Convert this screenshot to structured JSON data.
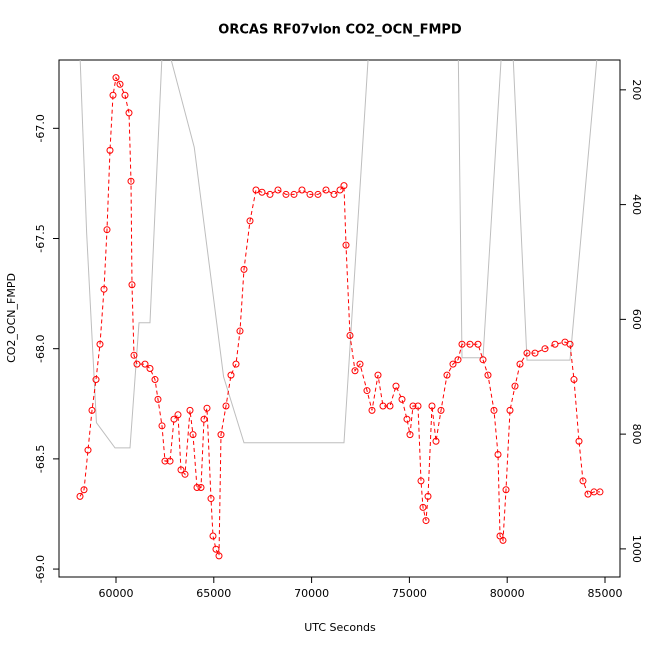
{
  "chart_data": {
    "type": "line",
    "title": "ORCAS RF07vlon CO2_OCN_FMPD",
    "xlabel": "UTC Seconds",
    "ylabel": "CO2_OCN_FMPD",
    "xlim": [
      57086,
      85767
    ],
    "xticks": [
      60000,
      65000,
      70000,
      75000,
      80000,
      85000
    ],
    "ylim": [
      -69.036,
      -66.69
    ],
    "yticks": [
      {
        "value": -69,
        "label": "-69.0"
      },
      {
        "value": -68.5,
        "label": "-68.5"
      },
      {
        "value": -68,
        "label": "-68.0"
      },
      {
        "value": -67.5,
        "label": "-67.5"
      },
      {
        "value": -67,
        "label": "-67.0"
      }
    ],
    "y2lim": [
      1049,
      148
    ],
    "y2ticks": [
      200,
      400,
      600,
      800,
      1000
    ],
    "series": [
      {
        "color": "#ff0000",
        "axis": "y",
        "markers": true,
        "x": [
          58160,
          58365,
          58569,
          58773,
          58978,
          59182,
          59387,
          59540,
          59693,
          59847,
          60000,
          60205,
          60460,
          60665,
          60767,
          60818,
          60920,
          61074,
          61483,
          61738,
          61994,
          62147,
          62352,
          62505,
          62761,
          62965,
          63170,
          63323,
          63528,
          63783,
          63937,
          64141,
          64346,
          64499,
          64652,
          64857,
          64959,
          65112,
          65266,
          65368,
          65624,
          65879,
          66135,
          66339,
          66544,
          66851,
          67157,
          67464,
          67873,
          68282,
          68691,
          69100,
          69509,
          69918,
          70327,
          70736,
          71145,
          71452,
          71656,
          71759,
          71963,
          72219,
          72474,
          72832,
          73088,
          73395,
          73650,
          74008,
          74315,
          74622,
          74877,
          75031,
          75184,
          75440,
          75593,
          75695,
          75849,
          75951,
          76155,
          76360,
          76616,
          76922,
          77229,
          77485,
          77689,
          78098,
          78507,
          78763,
          79018,
          79325,
          79530,
          79632,
          79785,
          79939,
          80143,
          80399,
          80655,
          81012,
          81421,
          81933,
          82444,
          82955,
          83211,
          83415,
          83671,
          83875,
          84131,
          84438,
          84744
        ],
        "values": [
          -68.67,
          -68.64,
          -68.46,
          -68.28,
          -68.14,
          -67.98,
          -67.73,
          -67.46,
          -67.1,
          -66.85,
          -66.77,
          -66.8,
          -66.85,
          -66.93,
          -67.24,
          -67.71,
          -68.03,
          -68.07,
          -68.07,
          -68.09,
          -68.14,
          -68.23,
          -68.35,
          -68.51,
          -68.51,
          -68.32,
          -68.3,
          -68.55,
          -68.57,
          -68.28,
          -68.39,
          -68.63,
          -68.63,
          -68.32,
          -68.27,
          -68.68,
          -68.85,
          -68.91,
          -68.94,
          -68.39,
          -68.26,
          -68.12,
          -68.07,
          -67.92,
          -67.64,
          -67.42,
          -67.28,
          -67.29,
          -67.3,
          -67.28,
          -67.3,
          -67.3,
          -67.28,
          -67.3,
          -67.3,
          -67.28,
          -67.3,
          -67.28,
          -67.26,
          -67.53,
          -67.94,
          -68.1,
          -68.07,
          -68.19,
          -68.28,
          -68.12,
          -68.26,
          -68.26,
          -68.17,
          -68.23,
          -68.32,
          -68.39,
          -68.26,
          -68.26,
          -68.6,
          -68.72,
          -68.78,
          -68.67,
          -68.26,
          -68.42,
          -68.28,
          -68.12,
          -68.07,
          -68.05,
          -67.98,
          -67.98,
          -67.98,
          -68.05,
          -68.12,
          -68.28,
          -68.48,
          -68.85,
          -68.87,
          -68.64,
          -68.28,
          -68.17,
          -68.07,
          -68.02,
          -68.02,
          -68.0,
          -67.98,
          -67.97,
          -67.98,
          -68.14,
          -68.42,
          -68.6,
          -68.66,
          -68.65,
          -68.65
        ]
      },
      {
        "color": "#bebebe",
        "axis": "y2",
        "markers": false,
        "x": [
          58160,
          58500,
          59000,
          59950,
          60716,
          61176,
          61738,
          62352,
          62761,
          64000,
          65500,
          66544,
          71656,
          72900,
          77500,
          77689,
          78763,
          79700,
          80300,
          81012,
          83211,
          84600
        ],
        "values": [
          140,
          450,
          780,
          824,
          824,
          606,
          606,
          140,
          140,
          300,
          700,
          815,
          815,
          140,
          140,
          667,
          667,
          140,
          140,
          671,
          671,
          140
        ]
      }
    ]
  }
}
